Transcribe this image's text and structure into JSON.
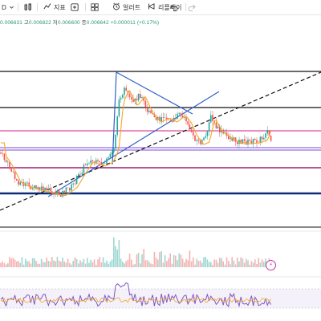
{
  "toolbar": {
    "interval_label": "D",
    "indicators_label": "지표",
    "alert_label": "얼러트",
    "replay_label": "리플레이"
  },
  "ohlc": {
    "open": "0.006631",
    "high_prefix": "고",
    "high": "0.006822",
    "low_prefix": "저",
    "low": "0.006600",
    "close_prefix": "종",
    "close": "0.006642",
    "change": "+0.000011",
    "change_pct": "(+0.17%)"
  },
  "colors": {
    "up": "#26a69a",
    "down": "#ef5350",
    "black_line": "#111111",
    "magenta_line": "#d81b8a",
    "navy_line": "#0b2a7a",
    "purple_line": "#7b4bd6",
    "trend_blue": "#3060c8",
    "ma_orange": "#f5a623",
    "rsi_purple": "#7e57c2"
  },
  "icons": [
    "chevron-down-icon",
    "indicators-icon",
    "compare-icon",
    "layout-icon",
    "alert-icon",
    "replay-icon",
    "undo-icon",
    "redo-icon"
  ]
}
